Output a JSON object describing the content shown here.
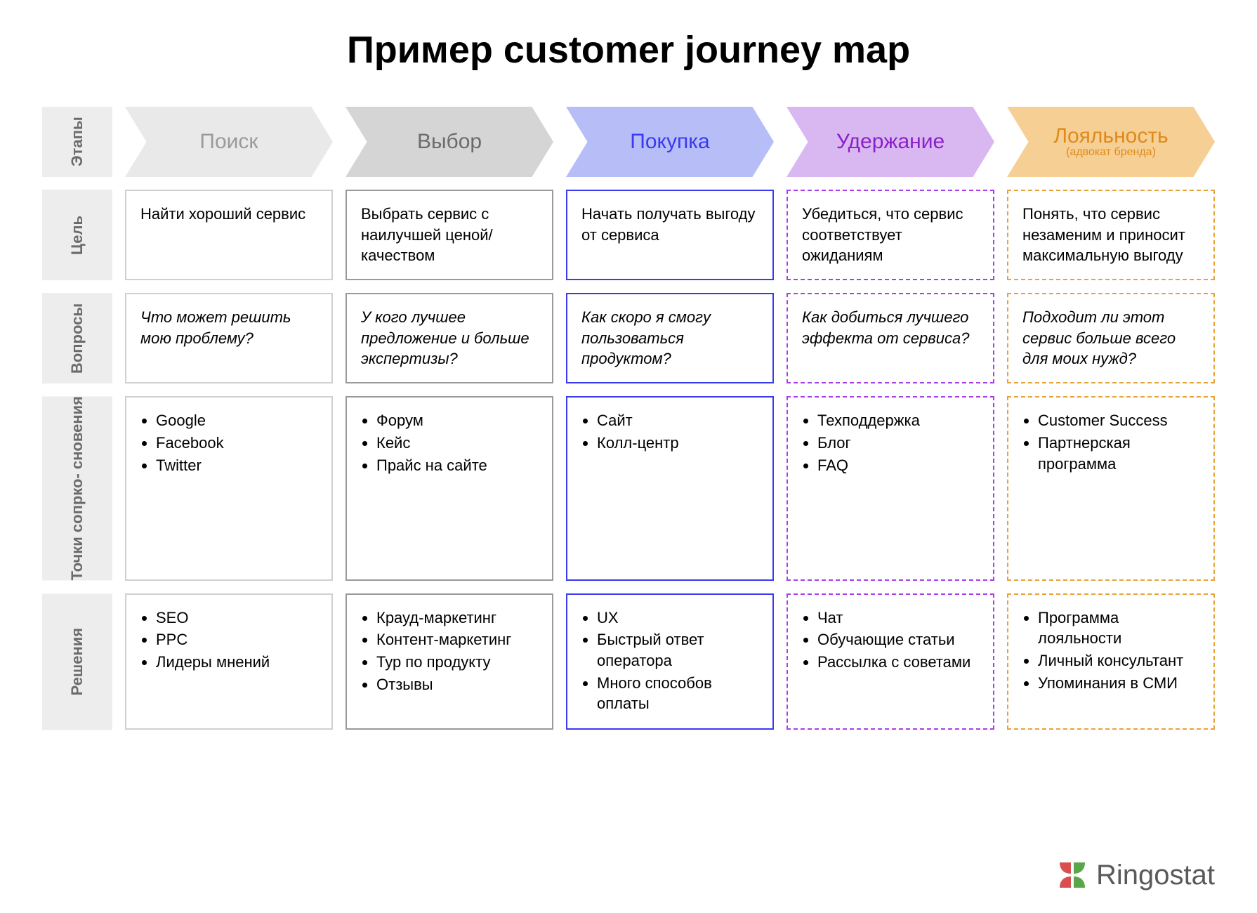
{
  "title": "Пример customer journey map",
  "rowHeaders": [
    "Этапы",
    "Цель",
    "Вопросы",
    "Точки сопрко-\nсновения",
    "Решения"
  ],
  "stages": [
    {
      "label": "Поиск",
      "fill": "#e9e9e9",
      "text": "#9a9a9a",
      "border": "#d0d0d0",
      "style": "solid"
    },
    {
      "label": "Выбор",
      "fill": "#d5d5d5",
      "text": "#6b6b6b",
      "border": "#9a9a9a",
      "style": "solid"
    },
    {
      "label": "Покупка",
      "fill": "#b7bdf7",
      "text": "#3a3af0",
      "border": "#3a3af0",
      "style": "solid"
    },
    {
      "label": "Удержание",
      "fill": "#d9b8f2",
      "text": "#8a20c9",
      "border": "#ab3ee5",
      "style": "dashed"
    },
    {
      "label": "Лояльность",
      "sublabel": "(адвокат бренда)",
      "fill": "#f6cf95",
      "text": "#e08a1a",
      "border": "#e8a23a",
      "style": "dashed"
    }
  ],
  "rows": {
    "goal": [
      "Найти хороший сервис",
      "Выбрать сервис с наилучшей ценой/качеством",
      "Начать получать выгоду от сервиса",
      "Убедиться, что сервис соответствует ожиданиям",
      "Понять, что сервис незаменим и приносит максимальную выгоду"
    ],
    "question": [
      "Что может решить мою проблему?",
      "У кого лучшее предложение и больше экспертизы?",
      "Как скоро я смогу пользоваться продуктом?",
      "Как добиться лучшего эффекта от сервиса?",
      "Подходит ли этот сервис больше всего для моих нужд?"
    ],
    "touch": [
      [
        "Google",
        "Facebook",
        "Twitter"
      ],
      [
        "Форум",
        "Кейс",
        "Прайс на сайте"
      ],
      [
        "Сайт",
        "Колл-центр"
      ],
      [
        "Техподдержка",
        "Блог",
        "FAQ"
      ],
      [
        "Customer Success",
        "Партнерская программа"
      ]
    ],
    "solution": [
      [
        "SEO",
        "PPC",
        "Лидеры мнений"
      ],
      [
        "Крауд-маркетинг",
        "Контент-маркетинг",
        "Тур по продукту",
        "Отзывы"
      ],
      [
        "UX",
        "Быстрый ответ оператора",
        "Много способов оплаты"
      ],
      [
        "Чат",
        "Обучающие статьи",
        "Рассылка с советами"
      ],
      [
        "Программа лояльности",
        "Личный консультант",
        "Упоминания в СМИ"
      ]
    ]
  },
  "logo": "Ringostat",
  "logoColors": {
    "red": "#d94f4f",
    "green": "#5aa64a"
  },
  "layout": {
    "bodyBg": "#ffffff",
    "rowhdrBg": "#ededed",
    "rowhdrText": "#6b6b6b",
    "cellFont": 22,
    "titleFont": 54,
    "stageFont": 30
  }
}
